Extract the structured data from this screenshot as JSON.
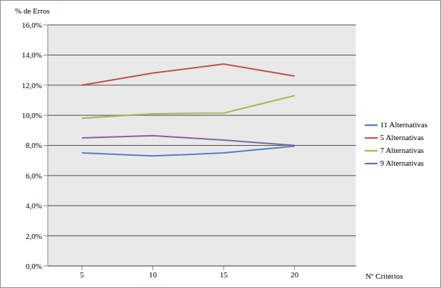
{
  "chart_data": {
    "type": "line",
    "y_label": "% de Erros",
    "x_label": "Nº Critérios",
    "categories": [
      5,
      10,
      15,
      20
    ],
    "series": [
      {
        "name": "5 Alternativas",
        "color": "#c0504d",
        "values": [
          12.0,
          12.8,
          13.4,
          12.6
        ]
      },
      {
        "name": "7 Alternativas",
        "color": "#9bbb59",
        "values": [
          9.8,
          10.1,
          10.15,
          11.3
        ]
      },
      {
        "name": "9 Alternativas",
        "color": "#8064a2",
        "values": [
          8.5,
          8.65,
          8.35,
          8.0
        ]
      },
      {
        "name": "11 Alternativas",
        "color": "#4f81bd",
        "values": [
          7.5,
          7.3,
          7.5,
          7.95
        ]
      }
    ],
    "ylim": [
      0,
      16
    ],
    "yticks": [
      {
        "value": 0,
        "label": "0,0%"
      },
      {
        "value": 2,
        "label": "2,0%"
      },
      {
        "value": 4,
        "label": "4,0%"
      },
      {
        "value": 6,
        "label": "6,0%"
      },
      {
        "value": 8,
        "label": "8,0%"
      },
      {
        "value": 10,
        "label": "10,0%"
      },
      {
        "value": 12,
        "label": "12,0%"
      },
      {
        "value": 14,
        "label": "14,0%"
      },
      {
        "value": 16,
        "label": "16,0%"
      }
    ],
    "grid": true,
    "legend": "right"
  }
}
